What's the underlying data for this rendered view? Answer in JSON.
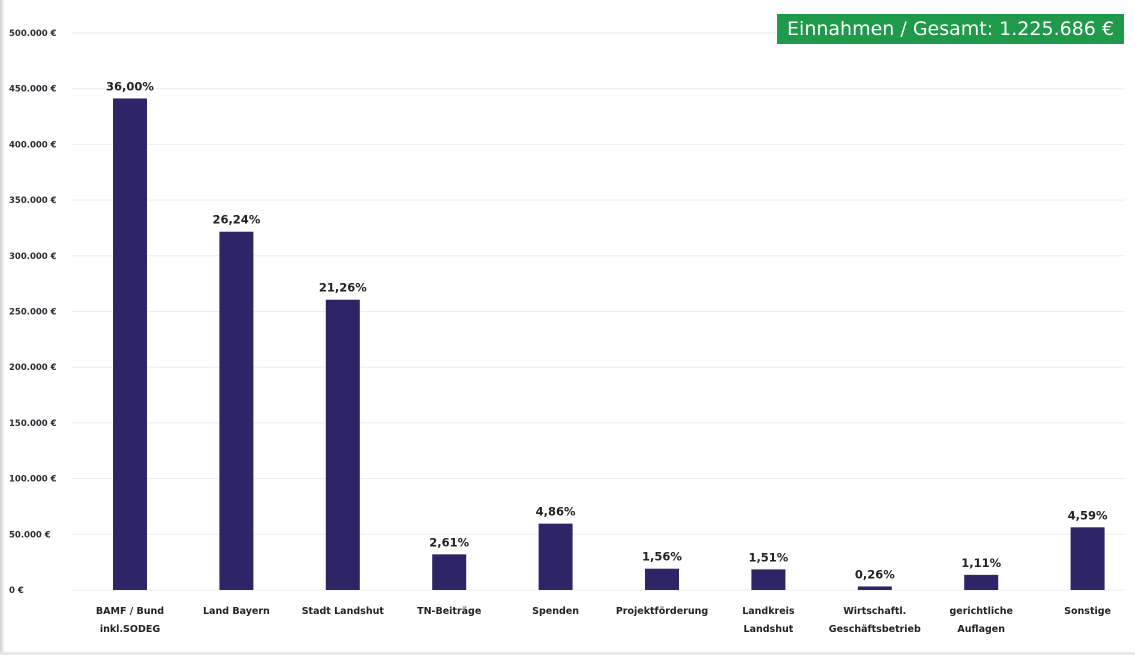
{
  "header": {
    "badge_text": "Einnahmen / Gesamt: 1.225.686 €"
  },
  "colors": {
    "bar": "#2d2566",
    "badge": "#1f9a4a"
  },
  "chart_data": {
    "type": "bar",
    "title": "Einnahmen / Gesamt: 1.225.686 €",
    "xlabel": "",
    "ylabel": "",
    "ylim": [
      0,
      500000
    ],
    "grid": true,
    "yticks": [
      {
        "value": 0,
        "label": "0 €"
      },
      {
        "value": 50000,
        "label": "50.000 €"
      },
      {
        "value": 100000,
        "label": "100.000 €"
      },
      {
        "value": 150000,
        "label": "150.000 €"
      },
      {
        "value": 200000,
        "label": "200.000 €"
      },
      {
        "value": 250000,
        "label": "250.000 €"
      },
      {
        "value": 300000,
        "label": "300.000 €"
      },
      {
        "value": 350000,
        "label": "350.000 €"
      },
      {
        "value": 400000,
        "label": "400.000 €"
      },
      {
        "value": 450000,
        "label": "450.000 €"
      },
      {
        "value": 500000,
        "label": "500.000 €"
      }
    ],
    "categories": [
      [
        "BAMF / Bund",
        "inkl.SODEG"
      ],
      [
        "Land Bayern"
      ],
      [
        "Stadt Landshut"
      ],
      [
        "TN-Beiträge"
      ],
      [
        "Spenden"
      ],
      [
        "Projektförderung"
      ],
      [
        "Landkreis",
        "Landshut"
      ],
      [
        "Wirtschaftl.",
        "Geschäftsbetrieb"
      ],
      [
        "gerichtliche",
        "Auflagen"
      ],
      [
        "Sonstige"
      ]
    ],
    "values": [
      441247,
      321620,
      260581,
      31990,
      59568,
      19121,
      18508,
      3187,
      13605,
      56259
    ],
    "data_labels": [
      "36,00%",
      "26,24%",
      "21,26%",
      "2,61%",
      "4,86%",
      "1,56%",
      "1,51%",
      "0,26%",
      "1,11%",
      "4,59%"
    ]
  }
}
